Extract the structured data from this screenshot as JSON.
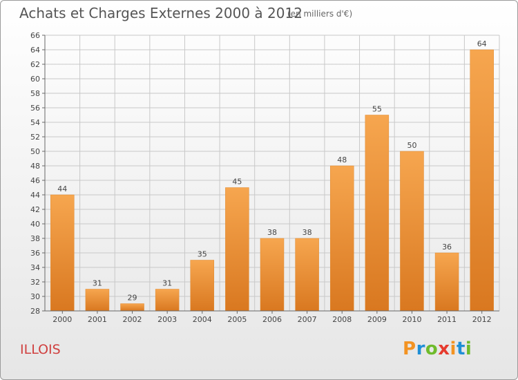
{
  "title": "Achats et Charges Externes 2000 à 2012",
  "subtitle": "(en milliers d'€)",
  "commune": "ILLOIS",
  "logo": {
    "letters": [
      "P",
      "r",
      "o",
      "x",
      "i",
      "t",
      "i"
    ],
    "colors": [
      "#f39322",
      "#1f8fd6",
      "#6fbb2c",
      "#e63b2e",
      "#f39322",
      "#1f8fd6",
      "#6fbb2c"
    ]
  },
  "colors": {
    "bar_top": "#f6a64f",
    "bar_bottom": "#d97820",
    "grid": "#c8c8c8"
  },
  "chart_data": {
    "type": "bar",
    "title": "Achats et Charges Externes 2000 à 2012",
    "subtitle": "(en milliers d'€)",
    "categories": [
      "2000",
      "2001",
      "2002",
      "2003",
      "2004",
      "2005",
      "2006",
      "2007",
      "2008",
      "2009",
      "2010",
      "2011",
      "2012"
    ],
    "values": [
      44,
      31,
      29,
      31,
      35,
      45,
      38,
      38,
      48,
      55,
      50,
      36,
      64
    ],
    "ylim": [
      28,
      66
    ],
    "yticks": [
      28,
      30,
      32,
      34,
      36,
      38,
      40,
      42,
      44,
      46,
      48,
      50,
      52,
      54,
      56,
      58,
      60,
      62,
      64,
      66
    ],
    "grid": true,
    "xlabel": "",
    "ylabel": ""
  }
}
